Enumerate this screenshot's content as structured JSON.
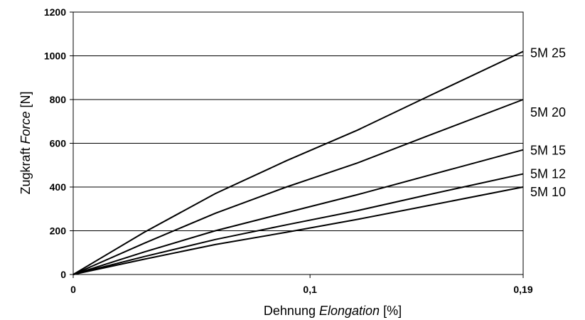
{
  "chart_data": {
    "type": "line",
    "title": "",
    "xlabel": {
      "prefix": "Dehnung ",
      "italic": "Elongation",
      "suffix": " [%]"
    },
    "ylabel": {
      "prefix": "Zugkraft ",
      "italic": "Force",
      "suffix": " [N]"
    },
    "xlim": [
      0,
      0.19
    ],
    "ylim": [
      0,
      1200
    ],
    "x_ticks": [
      {
        "value": 0,
        "label": "0"
      },
      {
        "value": 0.1,
        "label": "0,1"
      },
      {
        "value": 0.19,
        "label": "0,19"
      }
    ],
    "y_ticks": [
      {
        "value": 0,
        "label": "0"
      },
      {
        "value": 200,
        "label": "200"
      },
      {
        "value": 400,
        "label": "400"
      },
      {
        "value": 600,
        "label": "600"
      },
      {
        "value": 800,
        "label": "800"
      },
      {
        "value": 1000,
        "label": "1000"
      },
      {
        "value": 1200,
        "label": "1200"
      }
    ],
    "grid": "horizontal",
    "legend": "labels at right end of each line",
    "series": [
      {
        "name": "5M 25",
        "x": [
          0,
          0.03,
          0.06,
          0.09,
          0.12,
          0.15,
          0.19
        ],
        "y": [
          0,
          193,
          370,
          520,
          660,
          815,
          1020
        ]
      },
      {
        "name": "5M 20",
        "x": [
          0,
          0.03,
          0.06,
          0.09,
          0.12,
          0.15,
          0.19
        ],
        "y": [
          0,
          143,
          280,
          400,
          510,
          635,
          800
        ]
      },
      {
        "name": "5M 15",
        "x": [
          0,
          0.03,
          0.06,
          0.09,
          0.12,
          0.15,
          0.19
        ],
        "y": [
          0,
          103,
          200,
          283,
          365,
          453,
          570
        ]
      },
      {
        "name": "5M 12",
        "x": [
          0,
          0.03,
          0.06,
          0.09,
          0.12,
          0.15,
          0.19
        ],
        "y": [
          0,
          82,
          160,
          227,
          292,
          365,
          460
        ]
      },
      {
        "name": "5M 10",
        "x": [
          0,
          0.03,
          0.06,
          0.09,
          0.12,
          0.15,
          0.19
        ],
        "y": [
          0,
          70,
          137,
          193,
          252,
          315,
          400
        ]
      }
    ],
    "colors": {
      "line": "#000000",
      "grid": "#000000",
      "background": "#ffffff"
    }
  }
}
